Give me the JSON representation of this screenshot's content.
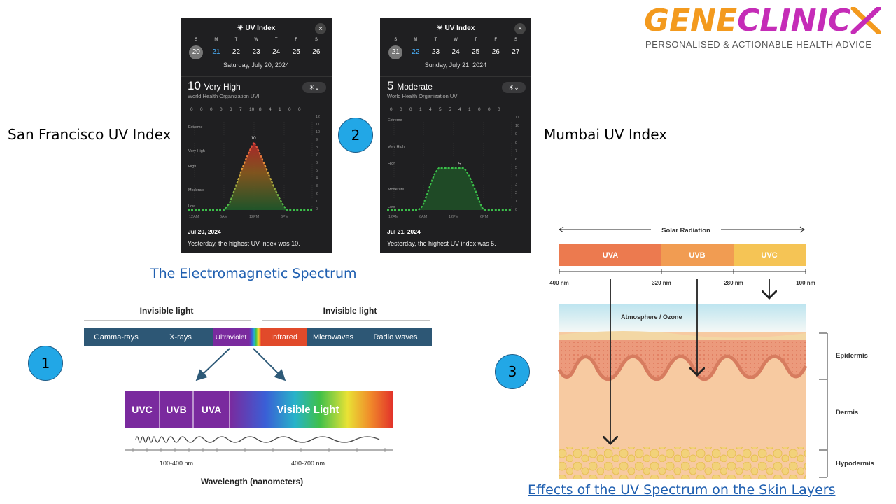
{
  "logo": {
    "part1": "GENE",
    "part2": "CLINIC",
    "tagline": "PERSONALISED & ACTIONABLE HEALTH ADVICE",
    "color1": "#f39a1e",
    "color2": "#c52cb7"
  },
  "captions": {
    "sf": "San Francisco UV Index",
    "mumbai": "Mumbai UV Index"
  },
  "links": {
    "em_spectrum": "The Electromagnetic Spectrum",
    "skin": "Effects of the UV Spectrum on the Skin Layers"
  },
  "badges": {
    "one": "1",
    "two": "2",
    "three": "3"
  },
  "uv_panels": [
    {
      "title": "UV Index",
      "close": "×",
      "days": [
        "S",
        "M",
        "T",
        "W",
        "T",
        "F",
        "S"
      ],
      "dates": [
        "20",
        "21",
        "22",
        "23",
        "24",
        "25",
        "26",
        "2"
      ],
      "date_label": "Saturday, July 20, 2024",
      "value": "10",
      "level": "Very High",
      "org": "World Health Organization UVI",
      "toggle": "☀⌄",
      "hourly": [
        "0",
        "0",
        "0",
        "0",
        "3",
        "7",
        "10",
        "8",
        "4",
        "1",
        "0",
        "0"
      ],
      "levels": [
        "Extreme",
        "Very High",
        "High",
        "Moderate",
        "Low"
      ],
      "scale": [
        "12",
        "11",
        "10",
        "9",
        "8",
        "7",
        "6",
        "5",
        "4",
        "3",
        "2",
        "1",
        "0"
      ],
      "time_labels": [
        "12AM",
        "6AM",
        "12PM",
        "6PM"
      ],
      "peak_label": "10",
      "footer_date": "Jul 20, 2024",
      "footer_text": "Yesterday, the highest UV index was 10."
    },
    {
      "title": "UV Index",
      "close": "×",
      "days": [
        "S",
        "M",
        "T",
        "W",
        "T",
        "F",
        "S"
      ],
      "dates": [
        "21",
        "22",
        "23",
        "24",
        "25",
        "26",
        "27",
        "2"
      ],
      "date_label": "Sunday, July 21, 2024",
      "value": "5",
      "level": "Moderate",
      "org": "World Health Organization UVI",
      "toggle": "☀⌄",
      "hourly": [
        "0",
        "0",
        "0",
        "1",
        "4",
        "5",
        "5",
        "4",
        "1",
        "0",
        "0",
        "0"
      ],
      "levels": [
        "Extreme",
        "Very High",
        "High",
        "Moderate",
        "Low"
      ],
      "scale": [
        "11",
        "10",
        "9",
        "8",
        "7",
        "6",
        "5",
        "4",
        "3",
        "2",
        "1",
        "0"
      ],
      "time_labels": [
        "12AM",
        "6AM",
        "12PM",
        "6PM"
      ],
      "peak_label": "5",
      "footer_date": "Jul 21, 2024",
      "footer_text": "Yesterday, the highest UV index was 5."
    }
  ],
  "em": {
    "invisible_left": "Invisible light",
    "invisible_right": "Invisible light",
    "bands": [
      "Gamma-rays",
      "X-rays",
      "Ultraviolet",
      "Infrared",
      "Microwaves",
      "Radio waves"
    ],
    "uv_bands": [
      "UVC",
      "UVB",
      "UVA"
    ],
    "visible": "Visible Light",
    "range1": "100-400 nm",
    "range2": "400-700 nm",
    "axis": "Wavelength (nanometers)"
  },
  "skin": {
    "solar": "Solar Radiation",
    "bands": [
      "UVA",
      "UVB",
      "UVC"
    ],
    "wavelengths": [
      "400 nm",
      "320 nm",
      "280 nm",
      "100 nm"
    ],
    "atmosphere": "Atmosphere / Ozone",
    "layers": [
      "Epidermis",
      "Dermis",
      "Hypodermis"
    ]
  }
}
